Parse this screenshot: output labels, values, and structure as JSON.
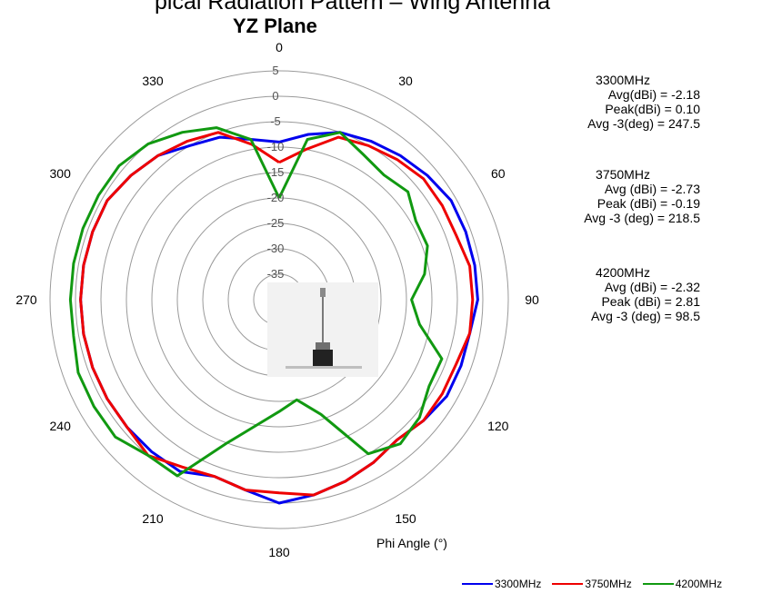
{
  "chart_data": {
    "type": "polar-line",
    "top_text_cut": "pical Radiation Pattern – Wing Antenna",
    "title": "YZ Plane",
    "angle_label": "Phi Angle (°)",
    "angle_ticks": [
      "0",
      "30",
      "60",
      "90",
      "120",
      "150",
      "180",
      "210",
      "240",
      "270",
      "300",
      "330"
    ],
    "radial_ticks": [
      "5",
      "0",
      "-5",
      "-10",
      "-15",
      "-20",
      "-25",
      "-30",
      "-35"
    ],
    "rlim": [
      -40,
      5
    ],
    "grid": true,
    "legend_position": "bottom-right",
    "series": [
      {
        "name": "3300MHz",
        "color": "#0000ee",
        "points": [
          [
            0,
            -9
          ],
          [
            10,
            -7
          ],
          [
            20,
            -5
          ],
          [
            30,
            -4
          ],
          [
            40,
            -3
          ],
          [
            50,
            -2
          ],
          [
            60,
            -1
          ],
          [
            70,
            -1
          ],
          [
            80,
            -1
          ],
          [
            90,
            -1
          ],
          [
            100,
            -2
          ],
          [
            110,
            -2
          ],
          [
            120,
            -2
          ],
          [
            130,
            -3
          ],
          [
            140,
            -4
          ],
          [
            150,
            -3
          ],
          [
            160,
            -2
          ],
          [
            170,
            -1
          ],
          [
            180,
            0
          ],
          [
            190,
            -2
          ],
          [
            200,
            -3
          ],
          [
            210,
            -1
          ],
          [
            220,
            -1
          ],
          [
            230,
            -1
          ],
          [
            240,
            -1
          ],
          [
            250,
            -1
          ],
          [
            260,
            -1
          ],
          [
            270,
            -1
          ],
          [
            280,
            -1
          ],
          [
            290,
            -1
          ],
          [
            300,
            -1
          ],
          [
            310,
            -2
          ],
          [
            320,
            -3
          ],
          [
            330,
            -5
          ],
          [
            340,
            -6
          ],
          [
            350,
            -8
          ]
        ]
      },
      {
        "name": "3750MHz",
        "color": "#ee0000",
        "points": [
          [
            0,
            -13
          ],
          [
            10,
            -10
          ],
          [
            20,
            -6
          ],
          [
            30,
            -5
          ],
          [
            40,
            -4
          ],
          [
            50,
            -3
          ],
          [
            60,
            -3
          ],
          [
            70,
            -3
          ],
          [
            80,
            -2
          ],
          [
            90,
            -2
          ],
          [
            100,
            -2
          ],
          [
            110,
            -3
          ],
          [
            120,
            -3
          ],
          [
            130,
            -3
          ],
          [
            140,
            -4
          ],
          [
            150,
            -3
          ],
          [
            160,
            -2
          ],
          [
            170,
            -1
          ],
          [
            180,
            -2
          ],
          [
            190,
            -2
          ],
          [
            200,
            -3
          ],
          [
            210,
            -2
          ],
          [
            220,
            0
          ],
          [
            230,
            -1
          ],
          [
            240,
            -1
          ],
          [
            250,
            -1
          ],
          [
            260,
            -1
          ],
          [
            270,
            -1
          ],
          [
            280,
            -1
          ],
          [
            290,
            -1
          ],
          [
            300,
            -1
          ],
          [
            310,
            -2
          ],
          [
            320,
            -3
          ],
          [
            330,
            -4
          ],
          [
            340,
            -5
          ],
          [
            350,
            -9
          ]
        ]
      },
      {
        "name": "4200MHz",
        "color": "#119911",
        "points": [
          [
            0,
            -20
          ],
          [
            10,
            -8
          ],
          [
            20,
            -5
          ],
          [
            30,
            -7
          ],
          [
            40,
            -8
          ],
          [
            50,
            -7
          ],
          [
            60,
            -9
          ],
          [
            70,
            -9
          ],
          [
            80,
            -11
          ],
          [
            90,
            -14
          ],
          [
            100,
            -12
          ],
          [
            110,
            -6
          ],
          [
            120,
            -6
          ],
          [
            130,
            -4
          ],
          [
            140,
            -3
          ],
          [
            150,
            -5
          ],
          [
            160,
            -16
          ],
          [
            170,
            -20
          ],
          [
            180,
            -18
          ],
          [
            190,
            -15
          ],
          [
            200,
            -10
          ],
          [
            210,
            0
          ],
          [
            220,
            0
          ],
          [
            230,
            2
          ],
          [
            240,
            2
          ],
          [
            250,
            2
          ],
          [
            260,
            1
          ],
          [
            270,
            1
          ],
          [
            280,
            1
          ],
          [
            290,
            1
          ],
          [
            300,
            1
          ],
          [
            310,
            1
          ],
          [
            320,
            0
          ],
          [
            330,
            -2
          ],
          [
            340,
            -4
          ],
          [
            350,
            -8
          ]
        ]
      }
    ],
    "stats": [
      {
        "header": "3300MHz",
        "lines": [
          "Avg(dBi) = -2.18",
          "Peak(dBi) = 0.10",
          "Avg -3(deg) = 247.5"
        ]
      },
      {
        "header": "3750MHz",
        "lines": [
          "Avg (dBi) =  -2.73",
          "Peak (dBi) =  -0.19",
          "Avg -3 (deg) =  218.5"
        ]
      },
      {
        "header": "4200MHz",
        "lines": [
          "Avg (dBi) =  -2.32",
          "Peak (dBi) =  2.81",
          "Avg -3 (deg) =  98.5"
        ]
      }
    ]
  }
}
